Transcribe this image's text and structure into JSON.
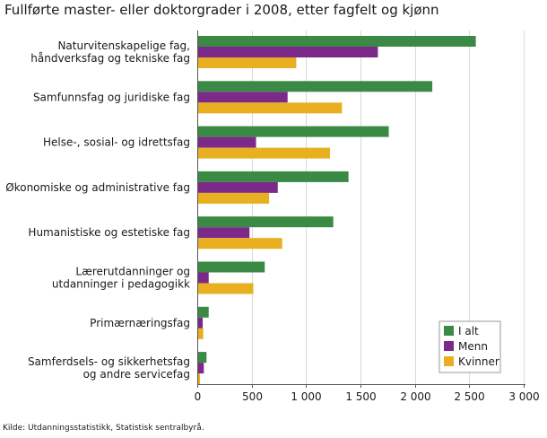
{
  "source": "Kilde: Utdanningsstatistikk, Statistisk sentralbyrå.",
  "chart_data": {
    "type": "bar",
    "orientation": "horizontal",
    "title": "Fullførte master- eller doktorgrader i 2008, etter fagfelt og kjønn",
    "xlabel": "",
    "ylabel": "",
    "xlim": [
      0,
      3000
    ],
    "grid": true,
    "legend_position": "bottom-right",
    "ticks": [
      {
        "value": 0,
        "label": "0"
      },
      {
        "value": 500,
        "label": "500"
      },
      {
        "value": 1000,
        "label": "1 000"
      },
      {
        "value": 1500,
        "label": "1 500"
      },
      {
        "value": 2000,
        "label": "2 000"
      },
      {
        "value": 2500,
        "label": "2 500"
      },
      {
        "value": 3000,
        "label": "3 000"
      }
    ],
    "categories": [
      [
        "Naturvitenskapelige fag,",
        "håndverksfag og tekniske fag"
      ],
      [
        "Samfunnsfag og juridiske fag"
      ],
      [
        "Helse-, sosial- og idrettsfag"
      ],
      [
        "Økonomiske og administrative fag"
      ],
      [
        "Humanistiske og estetiske fag"
      ],
      [
        "Lærerutdanninger og",
        "utdanninger i pedagogikk"
      ],
      [
        "Primærnæringsfag"
      ],
      [
        "Samferdsels- og sikkerhetsfag",
        "og andre servicefag"
      ]
    ],
    "series": [
      {
        "name": "I alt",
        "color": "#3a8a45",
        "values": [
          2560,
          2160,
          1760,
          1390,
          1250,
          620,
          105,
          85
        ]
      },
      {
        "name": "Menn",
        "color": "#7b2a8a",
        "values": [
          1660,
          830,
          540,
          740,
          480,
          105,
          50,
          60
        ]
      },
      {
        "name": "Kvinner",
        "color": "#e8b020",
        "values": [
          910,
          1330,
          1220,
          660,
          780,
          515,
          55,
          25
        ]
      }
    ]
  }
}
